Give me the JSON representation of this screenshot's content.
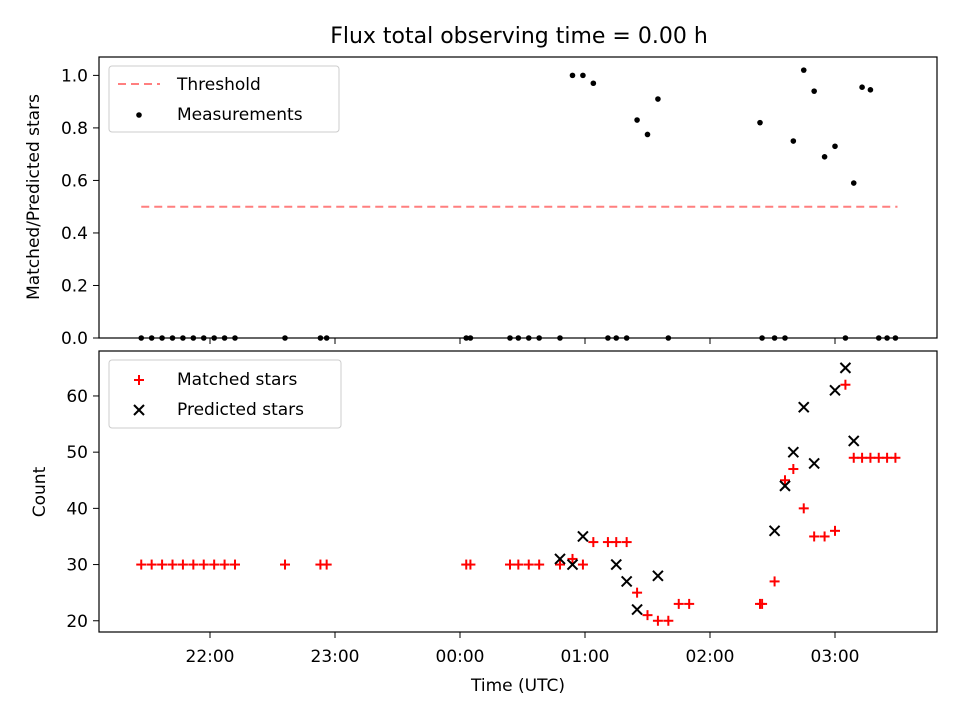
{
  "chart_data": [
    {
      "type": "scatter",
      "title": "Flux total observing time = 0.00 h",
      "ylabel": "Matched/Predicted stars",
      "xlabel": "",
      "ylim": [
        0,
        1.07
      ],
      "yticks": [
        0.0,
        0.2,
        0.4,
        0.6,
        0.8,
        1.0
      ],
      "yticklabels": [
        "0.0",
        "0.2",
        "0.4",
        "0.6",
        "0.8",
        "1.0"
      ],
      "legend_position": "top-left",
      "threshold": {
        "name": "Threshold",
        "y": 0.5,
        "x_start": "21:27",
        "x_end": "03:30",
        "color": "#ff7f7f",
        "style": "dashed"
      },
      "series": [
        {
          "name": "Measurements",
          "color": "#000000",
          "marker": "dot",
          "x": [
            "21:27",
            "21:32",
            "21:37",
            "21:42",
            "21:47",
            "21:52",
            "21:57",
            "22:02",
            "22:07",
            "22:12",
            "22:36",
            "22:53",
            "22:56",
            "00:03",
            "00:05",
            "00:24",
            "00:28",
            "00:33",
            "00:38",
            "00:48",
            "00:54",
            "00:59",
            "01:04",
            "01:11",
            "01:15",
            "01:20",
            "01:25",
            "01:30",
            "01:35",
            "01:40",
            "02:24",
            "02:25",
            "02:31",
            "02:36",
            "02:40",
            "02:45",
            "02:50",
            "02:55",
            "03:00",
            "03:05",
            "03:09",
            "03:13",
            "03:17",
            "03:21",
            "03:25",
            "03:29"
          ],
          "y": [
            0,
            0,
            0,
            0,
            0,
            0,
            0,
            0,
            0,
            0,
            0,
            0,
            0,
            0,
            0,
            0,
            0,
            0,
            0,
            0,
            1.0,
            1.0,
            0.97,
            0,
            0,
            0,
            0.83,
            0.775,
            0.91,
            0,
            0.82,
            0,
            0,
            0,
            0.75,
            1.02,
            0.94,
            0.69,
            0.73,
            0,
            0.59,
            0.955,
            0.945,
            0,
            0,
            0
          ]
        }
      ],
      "note_series_order": "time-sorted measurements"
    },
    {
      "type": "scatter",
      "xlabel": "Time (UTC)",
      "ylabel": "Count",
      "ylim": [
        18,
        68
      ],
      "yticks": [
        20,
        30,
        40,
        50,
        60
      ],
      "yticklabels": [
        "20",
        "30",
        "40",
        "50",
        "60"
      ],
      "xticks": [
        "22:00",
        "23:00",
        "00:00",
        "01:00",
        "02:00",
        "03:00"
      ],
      "legend_position": "top-left",
      "series": [
        {
          "name": "Matched stars",
          "color": "#ff0000",
          "marker": "plus",
          "x": [
            "21:27",
            "21:32",
            "21:37",
            "21:42",
            "21:47",
            "21:52",
            "21:57",
            "22:02",
            "22:07",
            "22:12",
            "22:36",
            "22:53",
            "22:56",
            "00:03",
            "00:05",
            "00:24",
            "00:28",
            "00:33",
            "00:38",
            "00:48",
            "00:54",
            "00:59",
            "01:04",
            "01:11",
            "01:15",
            "01:20",
            "01:25",
            "01:30",
            "01:35",
            "01:40",
            "01:45",
            "01:50",
            "02:24",
            "02:25",
            "02:31",
            "02:36",
            "02:40",
            "02:45",
            "02:50",
            "02:55",
            "03:00",
            "03:05",
            "03:09",
            "03:13",
            "03:17",
            "03:21",
            "03:25",
            "03:29"
          ],
          "y": [
            30,
            30,
            30,
            30,
            30,
            30,
            30,
            30,
            30,
            30,
            30,
            30,
            30,
            30,
            30,
            30,
            30,
            30,
            30,
            30,
            31,
            30,
            34,
            34,
            34,
            34,
            25,
            21,
            20,
            20,
            23,
            23,
            23,
            23,
            27,
            45,
            47,
            40,
            35,
            35,
            36,
            62,
            49,
            49,
            49,
            49,
            49,
            49
          ]
        },
        {
          "name": "Predicted stars",
          "color": "#000000",
          "marker": "x",
          "x": [
            "00:48",
            "00:54",
            "00:59",
            "01:15",
            "01:20",
            "01:25",
            "01:35",
            "02:31",
            "02:36",
            "02:40",
            "02:45",
            "02:50",
            "03:00",
            "03:05",
            "03:09"
          ],
          "y": [
            31,
            30,
            35,
            30,
            27,
            22,
            28,
            36,
            44,
            50,
            58,
            48,
            61,
            65,
            52
          ]
        }
      ]
    }
  ]
}
